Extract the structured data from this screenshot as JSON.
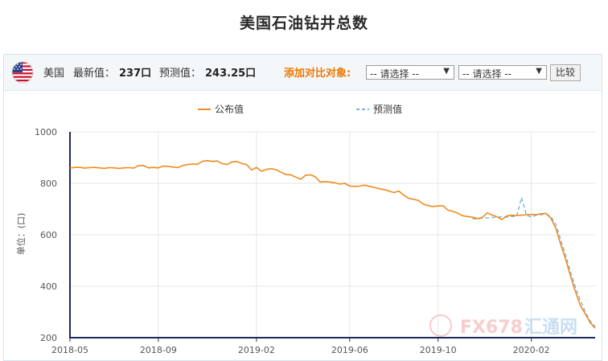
{
  "page": {
    "title": "美国石油钻井总数"
  },
  "toolbar": {
    "country": "美国",
    "latest_label": "最新值：",
    "latest_value": "237口",
    "forecast_label": "预测值：",
    "forecast_value": "243.25口",
    "compare_label": "添加对比对象:",
    "select1": "-- 请选择 --",
    "select2": "-- 请选择 --",
    "compare_button": "比较"
  },
  "watermark": {
    "fx": "FX678",
    "cn": "汇通网"
  },
  "colors": {
    "actual": "#f08a1e",
    "forecast": "#7db3df",
    "title": "#2a2a2a",
    "accent": "#ee7700"
  },
  "chart_data": {
    "type": "line",
    "title": "美国石油钻井总数",
    "xlabel": "",
    "ylabel": "单位：(口)",
    "ylim": [
      200,
      1000
    ],
    "yticks": [
      200,
      400,
      600,
      800,
      1000
    ],
    "xlim": [
      "2018-05-04",
      "2020-05-22"
    ],
    "xticks": [
      {
        "date": "2018-05-04",
        "label": "2018-05"
      },
      {
        "date": "2018-09-07",
        "label": "2018-09"
      },
      {
        "date": "2019-01-25",
        "label": "2019-02"
      },
      {
        "date": "2019-06-07",
        "label": "2019-06"
      },
      {
        "date": "2019-10-11",
        "label": "2019-10"
      },
      {
        "date": "2020-02-21",
        "label": "2020-02"
      }
    ],
    "grid": true,
    "legend": "top-center",
    "series": [
      {
        "name": "公布值",
        "style": "solid",
        "points": [
          [
            "2018-05-04",
            859
          ],
          [
            "2018-05-11",
            862
          ],
          [
            "2018-05-18",
            862
          ],
          [
            "2018-05-25",
            859
          ],
          [
            "2018-06-01",
            861
          ],
          [
            "2018-06-08",
            862
          ],
          [
            "2018-06-15",
            860
          ],
          [
            "2018-06-22",
            858
          ],
          [
            "2018-06-29",
            861
          ],
          [
            "2018-07-06",
            860
          ],
          [
            "2018-07-13",
            858
          ],
          [
            "2018-07-20",
            860
          ],
          [
            "2018-07-27",
            861
          ],
          [
            "2018-08-03",
            859
          ],
          [
            "2018-08-10",
            869
          ],
          [
            "2018-08-17",
            869
          ],
          [
            "2018-08-24",
            860
          ],
          [
            "2018-08-31",
            862
          ],
          [
            "2018-09-07",
            860
          ],
          [
            "2018-09-14",
            867
          ],
          [
            "2018-09-21",
            866
          ],
          [
            "2018-09-28",
            863
          ],
          [
            "2018-10-05",
            861
          ],
          [
            "2018-10-12",
            869
          ],
          [
            "2018-10-19",
            873
          ],
          [
            "2018-10-26",
            875
          ],
          [
            "2018-11-02",
            874
          ],
          [
            "2018-11-09",
            886
          ],
          [
            "2018-11-16",
            888
          ],
          [
            "2018-11-23",
            885
          ],
          [
            "2018-11-30",
            887
          ],
          [
            "2018-12-07",
            877
          ],
          [
            "2018-12-14",
            873
          ],
          [
            "2018-12-21",
            883
          ],
          [
            "2018-12-28",
            885
          ],
          [
            "2019-01-04",
            877
          ],
          [
            "2019-01-11",
            873
          ],
          [
            "2019-01-18",
            852
          ],
          [
            "2019-01-25",
            862
          ],
          [
            "2019-02-01",
            847
          ],
          [
            "2019-02-08",
            854
          ],
          [
            "2019-02-15",
            857
          ],
          [
            "2019-02-22",
            853
          ],
          [
            "2019-03-01",
            843
          ],
          [
            "2019-03-08",
            834
          ],
          [
            "2019-03-15",
            833
          ],
          [
            "2019-03-22",
            824
          ],
          [
            "2019-03-29",
            816
          ],
          [
            "2019-04-05",
            831
          ],
          [
            "2019-04-12",
            833
          ],
          [
            "2019-04-19",
            825
          ],
          [
            "2019-04-26",
            805
          ],
          [
            "2019-05-03",
            807
          ],
          [
            "2019-05-10",
            805
          ],
          [
            "2019-05-17",
            802
          ],
          [
            "2019-05-24",
            797
          ],
          [
            "2019-05-31",
            800
          ],
          [
            "2019-06-07",
            789
          ],
          [
            "2019-06-14",
            788
          ],
          [
            "2019-06-21",
            789
          ],
          [
            "2019-06-28",
            793
          ],
          [
            "2019-07-05",
            788
          ],
          [
            "2019-07-12",
            784
          ],
          [
            "2019-07-19",
            779
          ],
          [
            "2019-07-26",
            776
          ],
          [
            "2019-08-02",
            770
          ],
          [
            "2019-08-09",
            764
          ],
          [
            "2019-08-16",
            770
          ],
          [
            "2019-08-23",
            754
          ],
          [
            "2019-08-30",
            742
          ],
          [
            "2019-09-06",
            738
          ],
          [
            "2019-09-13",
            733
          ],
          [
            "2019-09-20",
            719
          ],
          [
            "2019-09-27",
            713
          ],
          [
            "2019-10-04",
            710
          ],
          [
            "2019-10-11",
            712
          ],
          [
            "2019-10-18",
            713
          ],
          [
            "2019-10-25",
            696
          ],
          [
            "2019-11-01",
            691
          ],
          [
            "2019-11-08",
            684
          ],
          [
            "2019-11-15",
            674
          ],
          [
            "2019-11-22",
            671
          ],
          [
            "2019-11-29",
            668
          ],
          [
            "2019-12-06",
            663
          ],
          [
            "2019-12-13",
            667
          ],
          [
            "2019-12-20",
            685
          ],
          [
            "2019-12-27",
            677
          ],
          [
            "2020-01-03",
            670
          ],
          [
            "2020-01-10",
            659
          ],
          [
            "2020-01-17",
            673
          ],
          [
            "2020-01-24",
            676
          ],
          [
            "2020-01-31",
            675
          ],
          [
            "2020-02-07",
            676
          ],
          [
            "2020-02-14",
            678
          ],
          [
            "2020-02-21",
            679
          ],
          [
            "2020-02-28",
            678
          ],
          [
            "2020-03-06",
            682
          ],
          [
            "2020-03-13",
            683
          ],
          [
            "2020-03-20",
            664
          ],
          [
            "2020-03-27",
            624
          ],
          [
            "2020-04-03",
            562
          ],
          [
            "2020-04-10",
            504
          ],
          [
            "2020-04-17",
            438
          ],
          [
            "2020-04-24",
            378
          ],
          [
            "2020-05-01",
            325
          ],
          [
            "2020-05-08",
            292
          ],
          [
            "2020-05-15",
            258
          ],
          [
            "2020-05-22",
            237
          ]
        ]
      },
      {
        "name": "预测值",
        "style": "dashed",
        "points": [
          [
            "2019-11-29",
            663
          ],
          [
            "2019-12-06",
            660
          ],
          [
            "2019-12-13",
            665
          ],
          [
            "2019-12-20",
            666
          ],
          [
            "2020-01-03",
            668
          ],
          [
            "2020-01-10",
            670
          ],
          [
            "2020-01-17",
            669
          ],
          [
            "2020-01-24",
            672
          ],
          [
            "2020-01-31",
            671
          ],
          [
            "2020-02-07",
            745
          ],
          [
            "2020-02-14",
            676
          ],
          [
            "2020-02-21",
            669
          ],
          [
            "2020-02-28",
            676
          ],
          [
            "2020-03-06",
            678
          ],
          [
            "2020-03-13",
            681
          ],
          [
            "2020-03-20",
            670
          ],
          [
            "2020-03-27",
            640
          ],
          [
            "2020-04-03",
            580
          ],
          [
            "2020-04-10",
            520
          ],
          [
            "2020-04-17",
            455
          ],
          [
            "2020-04-24",
            395
          ],
          [
            "2020-05-01",
            345
          ],
          [
            "2020-05-08",
            300
          ],
          [
            "2020-05-15",
            265
          ],
          [
            "2020-05-22",
            243.25
          ]
        ]
      }
    ]
  }
}
